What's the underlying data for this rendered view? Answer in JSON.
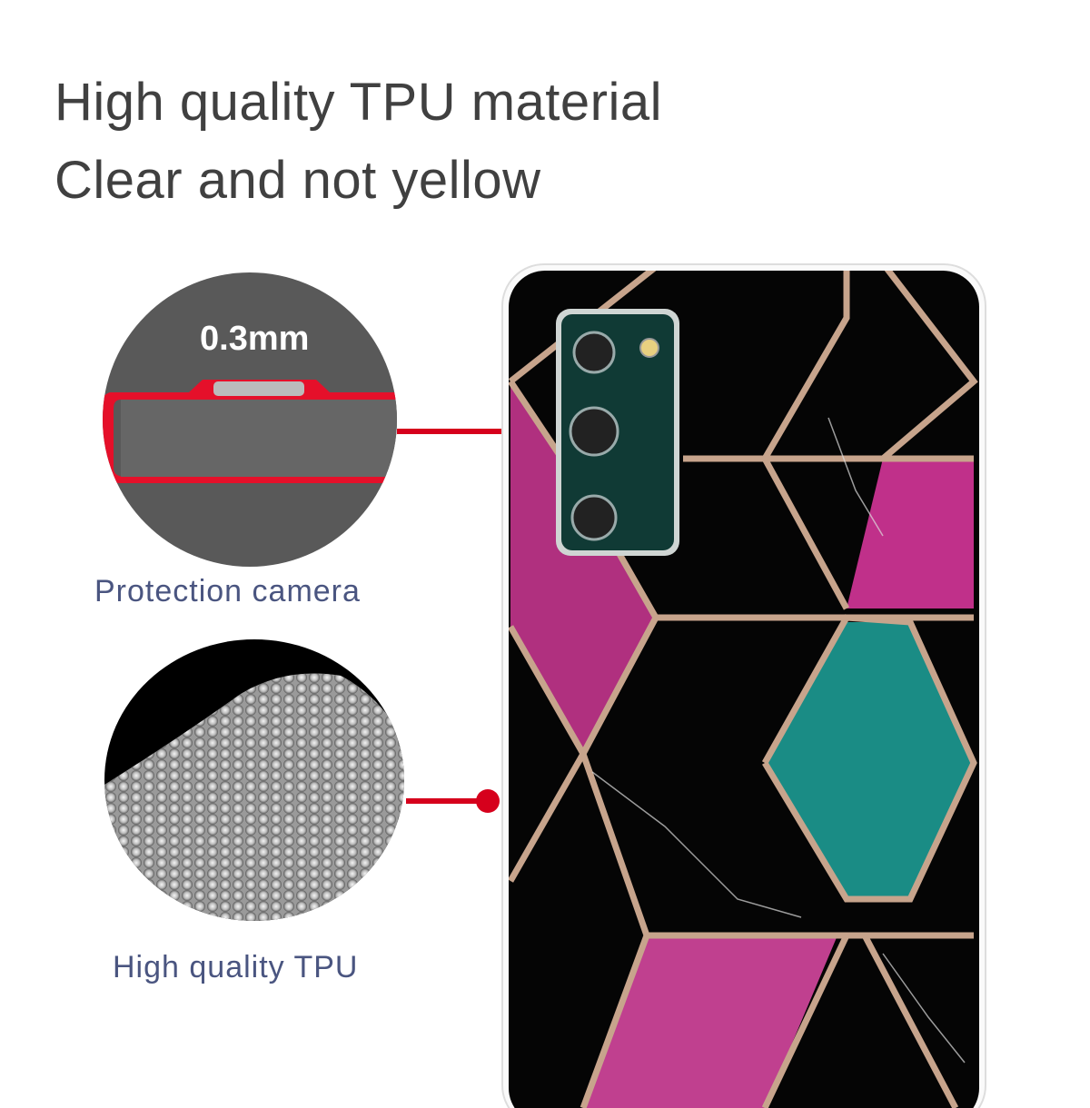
{
  "headline": {
    "line1": "High quality TPU material",
    "line2": "Clear and not yellow"
  },
  "callouts": [
    {
      "label": "Protection camera",
      "measurement": "0.3mm"
    },
    {
      "label": "High quality TPU"
    }
  ],
  "colors": {
    "accent": "#d6001c",
    "caption": "#4a5580",
    "frame": "#c7a48c"
  }
}
